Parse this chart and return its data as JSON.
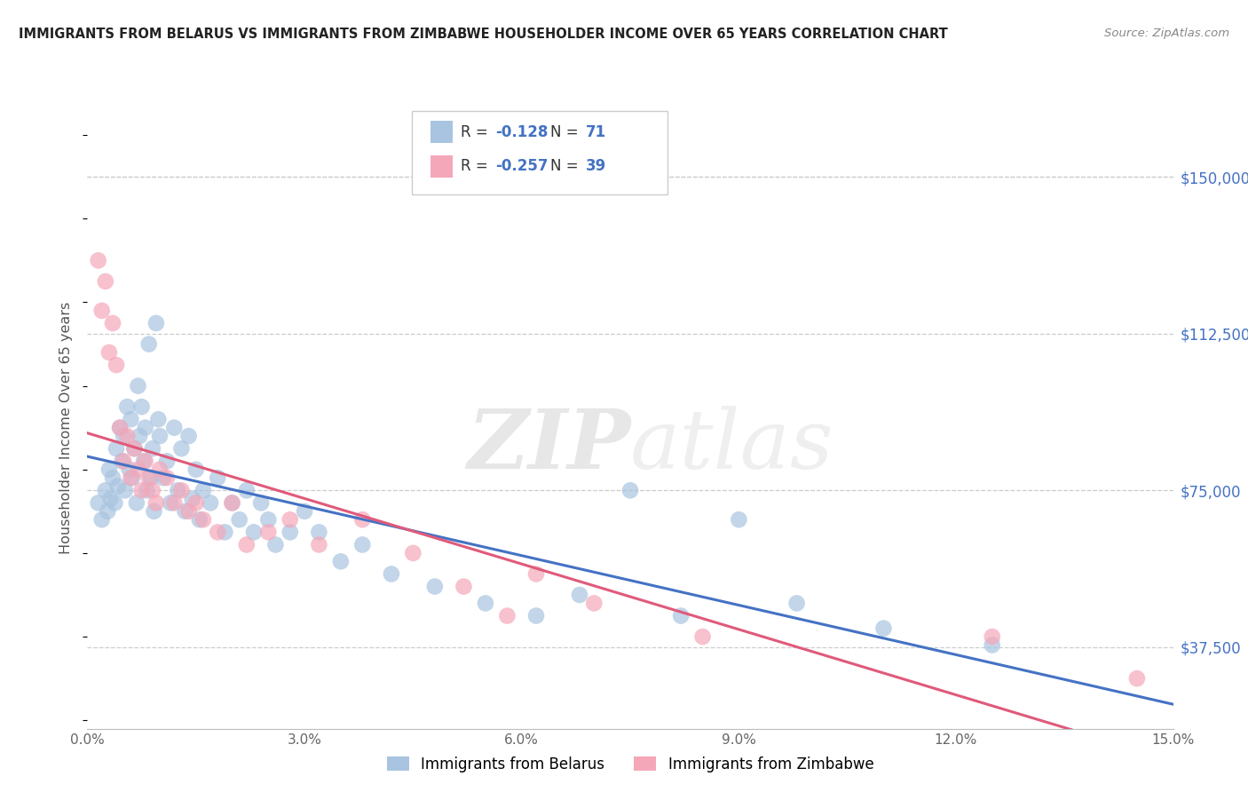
{
  "title": "IMMIGRANTS FROM BELARUS VS IMMIGRANTS FROM ZIMBABWE HOUSEHOLDER INCOME OVER 65 YEARS CORRELATION CHART",
  "source": "Source: ZipAtlas.com",
  "ylabel": "Householder Income Over 65 years",
  "xlabel_vals": [
    0.0,
    3.0,
    6.0,
    9.0,
    12.0,
    15.0
  ],
  "ytick_labels": [
    "$37,500",
    "$75,000",
    "$112,500",
    "$150,000"
  ],
  "ytick_vals": [
    37500,
    75000,
    112500,
    150000
  ],
  "xmin": 0.0,
  "xmax": 15.0,
  "ymin": 18000,
  "ymax": 162000,
  "legend_belarus": "Immigrants from Belarus",
  "legend_zimbabwe": "Immigrants from Zimbabwe",
  "r_belarus": -0.128,
  "n_belarus": 71,
  "r_zimbabwe": -0.257,
  "n_zimbabwe": 39,
  "color_belarus": "#a8c4e0",
  "color_zimbabwe": "#f4a7b9",
  "line_color_belarus": "#4472c4",
  "line_color_zimbabwe": "#e05a7a",
  "title_color": "#222222",
  "source_color": "#888888",
  "axis_label_color": "#555555",
  "tick_color_right": "#4472c4",
  "watermark_zip": "ZIP",
  "watermark_atlas": "atlas",
  "belarus_x": [
    0.15,
    0.2,
    0.25,
    0.28,
    0.3,
    0.32,
    0.35,
    0.38,
    0.4,
    0.42,
    0.45,
    0.48,
    0.5,
    0.52,
    0.55,
    0.58,
    0.6,
    0.62,
    0.65,
    0.68,
    0.7,
    0.72,
    0.75,
    0.78,
    0.8,
    0.82,
    0.85,
    0.88,
    0.9,
    0.92,
    0.95,
    0.98,
    1.0,
    1.05,
    1.1,
    1.15,
    1.2,
    1.25,
    1.3,
    1.35,
    1.4,
    1.45,
    1.5,
    1.55,
    1.6,
    1.7,
    1.8,
    1.9,
    2.0,
    2.1,
    2.2,
    2.3,
    2.4,
    2.5,
    2.6,
    2.8,
    3.0,
    3.2,
    3.5,
    3.8,
    4.2,
    4.8,
    5.5,
    6.2,
    6.8,
    7.5,
    8.2,
    9.0,
    9.8,
    11.0,
    12.5
  ],
  "belarus_y": [
    72000,
    68000,
    75000,
    70000,
    80000,
    73000,
    78000,
    72000,
    85000,
    76000,
    90000,
    82000,
    88000,
    75000,
    95000,
    80000,
    92000,
    78000,
    85000,
    72000,
    100000,
    88000,
    95000,
    82000,
    90000,
    75000,
    110000,
    78000,
    85000,
    70000,
    115000,
    92000,
    88000,
    78000,
    82000,
    72000,
    90000,
    75000,
    85000,
    70000,
    88000,
    73000,
    80000,
    68000,
    75000,
    72000,
    78000,
    65000,
    72000,
    68000,
    75000,
    65000,
    72000,
    68000,
    62000,
    65000,
    70000,
    65000,
    58000,
    62000,
    55000,
    52000,
    48000,
    45000,
    50000,
    75000,
    45000,
    68000,
    48000,
    42000,
    38000
  ],
  "zimbabwe_x": [
    0.15,
    0.2,
    0.25,
    0.3,
    0.35,
    0.4,
    0.45,
    0.5,
    0.55,
    0.6,
    0.65,
    0.7,
    0.75,
    0.8,
    0.85,
    0.9,
    0.95,
    1.0,
    1.1,
    1.2,
    1.3,
    1.4,
    1.5,
    1.6,
    1.8,
    2.0,
    2.2,
    2.5,
    2.8,
    3.2,
    3.8,
    4.5,
    5.2,
    5.8,
    6.2,
    7.0,
    8.5,
    12.5,
    14.5
  ],
  "zimbabwe_y": [
    130000,
    118000,
    125000,
    108000,
    115000,
    105000,
    90000,
    82000,
    88000,
    78000,
    85000,
    80000,
    75000,
    82000,
    78000,
    75000,
    72000,
    80000,
    78000,
    72000,
    75000,
    70000,
    72000,
    68000,
    65000,
    72000,
    62000,
    65000,
    68000,
    62000,
    68000,
    60000,
    52000,
    45000,
    55000,
    48000,
    40000,
    40000,
    30000
  ]
}
